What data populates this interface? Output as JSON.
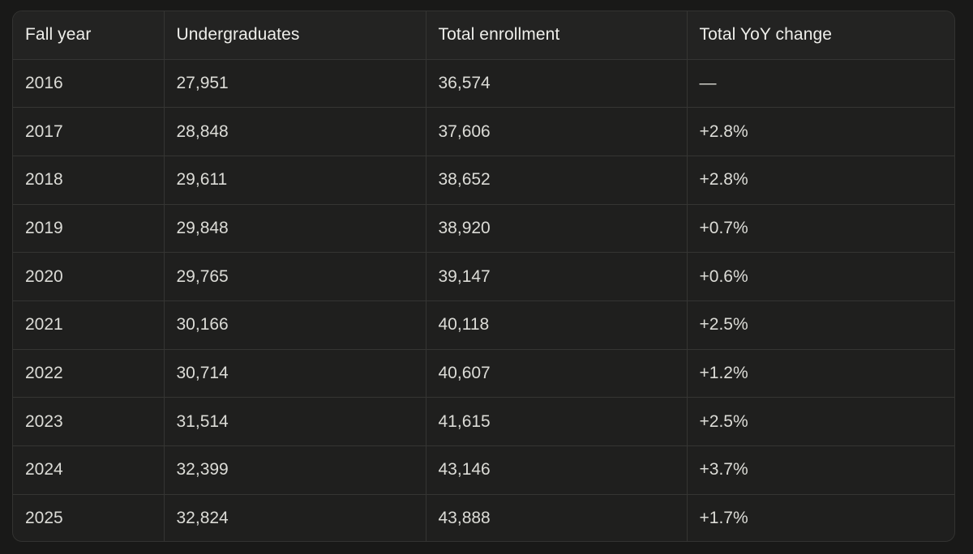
{
  "table": {
    "headers": [
      "Fall year",
      "Undergraduates",
      "Total enrollment",
      "Total YoY change"
    ],
    "rows": [
      [
        "2016",
        "27,951",
        "36,574",
        "—"
      ],
      [
        "2017",
        "28,848",
        "37,606",
        "+2.8%"
      ],
      [
        "2018",
        "29,611",
        "38,652",
        "+2.8%"
      ],
      [
        "2019",
        "29,848",
        "38,920",
        "+0.7%"
      ],
      [
        "2020",
        "29,765",
        "39,147",
        "+0.6%"
      ],
      [
        "2021",
        "30,166",
        "40,118",
        "+2.5%"
      ],
      [
        "2022",
        "30,714",
        "40,607",
        "+1.2%"
      ],
      [
        "2023",
        "31,514",
        "41,615",
        "+2.5%"
      ],
      [
        "2024",
        "32,399",
        "43,146",
        "+3.7%"
      ],
      [
        "2025",
        "32,824",
        "43,888",
        "+1.7%"
      ]
    ]
  }
}
